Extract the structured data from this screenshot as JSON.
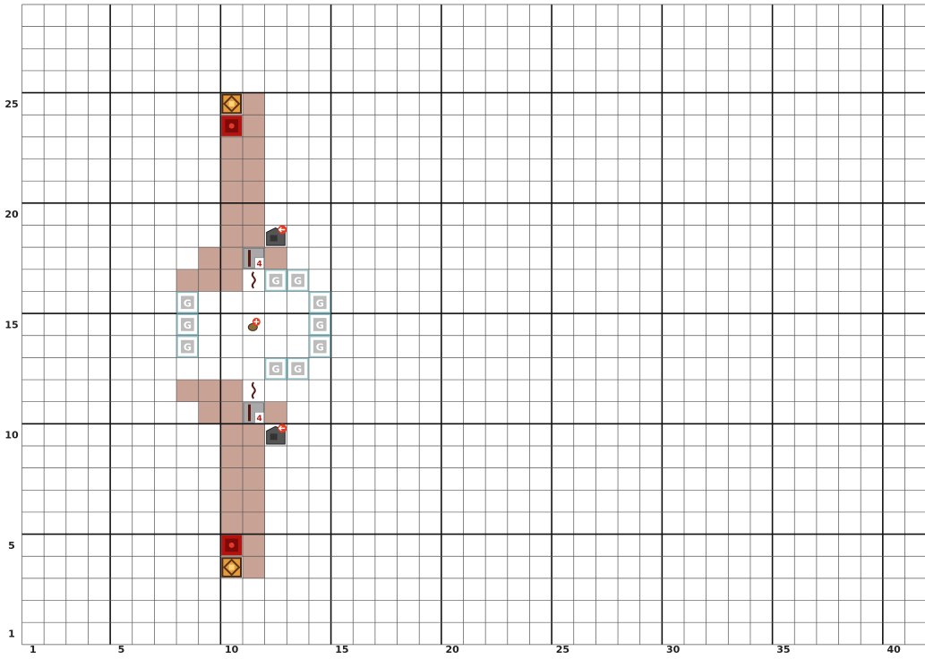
{
  "grid": {
    "columns": 42,
    "rows": 29,
    "x_ticks": [
      {
        "value": 1,
        "label": "1"
      },
      {
        "value": 5,
        "label": "5"
      },
      {
        "value": 10,
        "label": "10"
      },
      {
        "value": 15,
        "label": "15"
      },
      {
        "value": 20,
        "label": "20"
      },
      {
        "value": 25,
        "label": "25"
      },
      {
        "value": 30,
        "label": "30"
      },
      {
        "value": 35,
        "label": "35"
      },
      {
        "value": 40,
        "label": "40"
      }
    ],
    "y_ticks": [
      {
        "value": 1,
        "label": "1"
      },
      {
        "value": 5,
        "label": "5"
      },
      {
        "value": 10,
        "label": "10"
      },
      {
        "value": 15,
        "label": "15"
      },
      {
        "value": 20,
        "label": "20"
      },
      {
        "value": 25,
        "label": "25"
      }
    ],
    "major_line_every": 5
  },
  "colors": {
    "background": "#ffffff",
    "grid_minor": "#555555",
    "grid_major": "#111111",
    "dust_tile": "#c9a296",
    "glass_border": "#8fc1c8"
  },
  "blocks": [
    {
      "type": "redstone-lamp",
      "x": 10,
      "y": 25
    },
    {
      "type": "redstone-block",
      "x": 10,
      "y": 24
    },
    {
      "type": "redstone-lamp",
      "x": 10,
      "y": 4
    },
    {
      "type": "redstone-block",
      "x": 10,
      "y": 5
    },
    {
      "type": "observer",
      "x": 12,
      "y": 19
    },
    {
      "type": "observer",
      "x": 12,
      "y": 10
    },
    {
      "type": "repeater",
      "x": 11,
      "y": 18,
      "delay_label": "4"
    },
    {
      "type": "repeater",
      "x": 11,
      "y": 11,
      "delay_label": "4"
    },
    {
      "type": "torch",
      "x": 11,
      "y": 17
    },
    {
      "type": "torch",
      "x": 11,
      "y": 12
    },
    {
      "type": "button",
      "x": 11,
      "y": 15
    },
    {
      "type": "glass",
      "x": 8,
      "y": 16,
      "label": "G"
    },
    {
      "type": "glass",
      "x": 8,
      "y": 15,
      "label": "G"
    },
    {
      "type": "glass",
      "x": 8,
      "y": 14,
      "label": "G"
    },
    {
      "type": "glass",
      "x": 12,
      "y": 17,
      "label": "G"
    },
    {
      "type": "glass",
      "x": 13,
      "y": 17,
      "label": "G"
    },
    {
      "type": "glass",
      "x": 14,
      "y": 16,
      "label": "G"
    },
    {
      "type": "glass",
      "x": 14,
      "y": 15,
      "label": "G"
    },
    {
      "type": "glass",
      "x": 14,
      "y": 14,
      "label": "G"
    },
    {
      "type": "glass",
      "x": 12,
      "y": 13,
      "label": "G"
    },
    {
      "type": "glass",
      "x": 13,
      "y": 13,
      "label": "G"
    }
  ],
  "dust_tiles": [
    [
      10,
      24
    ],
    [
      10,
      23
    ],
    [
      10,
      22
    ],
    [
      10,
      21
    ],
    [
      10,
      20
    ],
    [
      10,
      19
    ],
    [
      10,
      18
    ],
    [
      10,
      17
    ],
    [
      11,
      25
    ],
    [
      11,
      24
    ],
    [
      11,
      23
    ],
    [
      11,
      22
    ],
    [
      11,
      21
    ],
    [
      11,
      20
    ],
    [
      11,
      19
    ],
    [
      12,
      18
    ],
    [
      9,
      18
    ],
    [
      9,
      17
    ],
    [
      8,
      17
    ],
    [
      10,
      12
    ],
    [
      10,
      11
    ],
    [
      10,
      10
    ],
    [
      10,
      9
    ],
    [
      10,
      8
    ],
    [
      10,
      7
    ],
    [
      10,
      6
    ],
    [
      10,
      5
    ],
    [
      11,
      10
    ],
    [
      11,
      9
    ],
    [
      11,
      8
    ],
    [
      11,
      7
    ],
    [
      11,
      6
    ],
    [
      11,
      5
    ],
    [
      11,
      4
    ],
    [
      12,
      11
    ],
    [
      9,
      12
    ],
    [
      9,
      11
    ],
    [
      8,
      12
    ]
  ]
}
